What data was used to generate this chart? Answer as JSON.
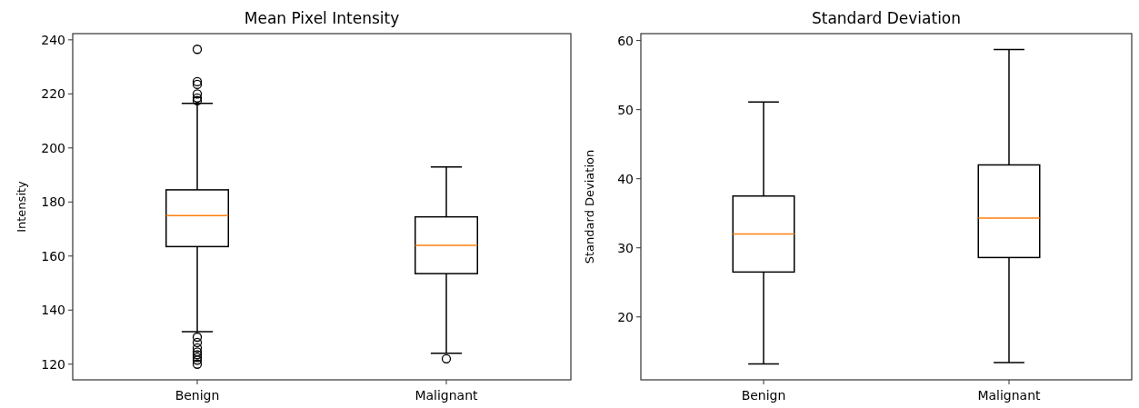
{
  "chart_data": [
    {
      "type": "box",
      "title": "Mean Pixel Intensity",
      "ylabel": "Intensity",
      "categories": [
        "Benign",
        "Malignant"
      ],
      "boxes": [
        {
          "low": 132,
          "q1": 163.5,
          "median": 175,
          "q3": 184.5,
          "high": 216.5,
          "outliers": [
            236.5,
            224.5,
            223.5,
            220,
            218.5,
            217.5,
            130,
            128,
            126,
            124.5,
            123.5,
            122.5,
            121.5,
            120
          ]
        },
        {
          "low": 124,
          "q1": 153.5,
          "median": 164,
          "q3": 174.5,
          "high": 193,
          "outliers": [
            122
          ]
        }
      ],
      "ylim": [
        114.2,
        242.3
      ],
      "yticks": [
        120,
        140,
        160,
        180,
        200,
        220,
        240
      ]
    },
    {
      "type": "box",
      "title": "Standard Deviation",
      "ylabel": "Standard Deviation",
      "categories": [
        "Benign",
        "Malignant"
      ],
      "boxes": [
        {
          "low": 13.2,
          "q1": 26.5,
          "median": 32,
          "q3": 37.5,
          "high": 51.1
        },
        {
          "low": 13.4,
          "q1": 28.6,
          "median": 34.3,
          "q3": 42,
          "high": 58.7
        }
      ],
      "ylim": [
        10.9,
        61.0
      ],
      "yticks": [
        20,
        30,
        40,
        50,
        60
      ]
    }
  ]
}
